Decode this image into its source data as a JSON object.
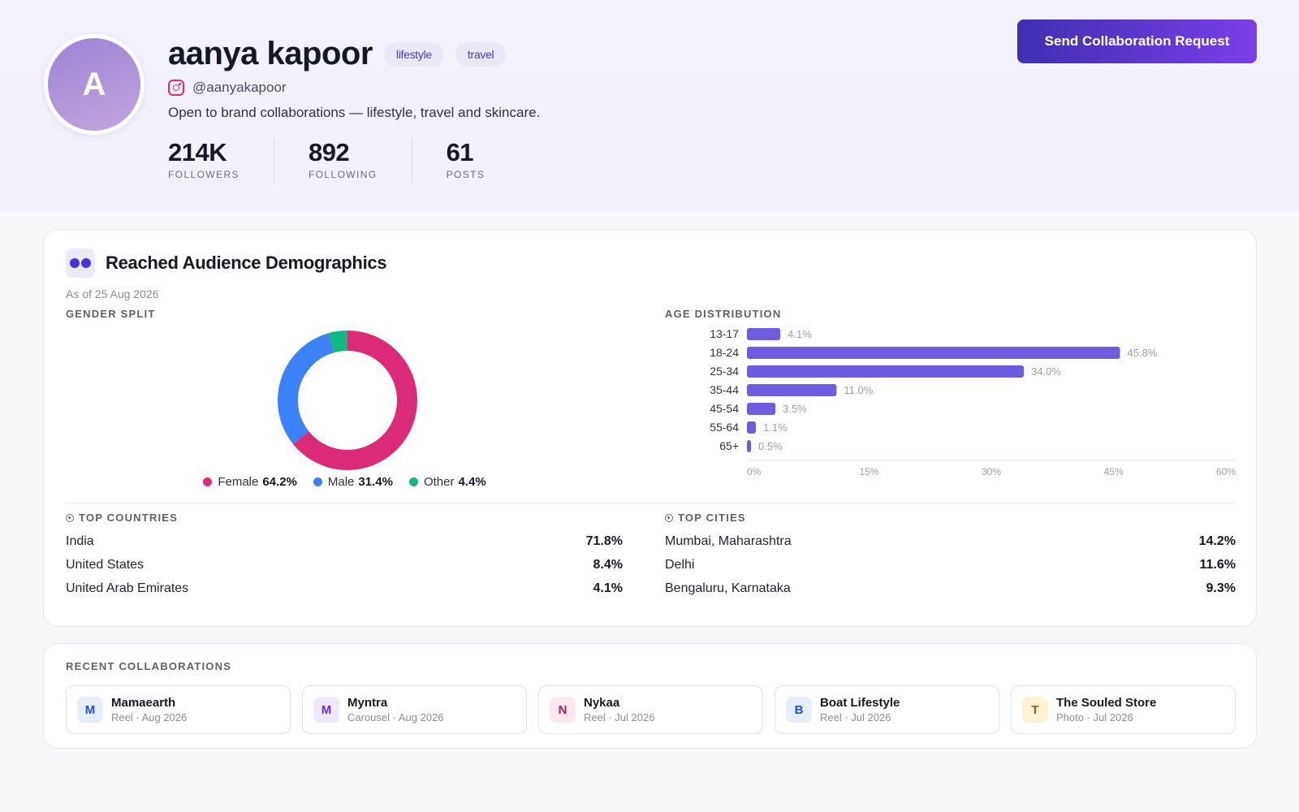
{
  "profile": {
    "avatar_letter": "A",
    "name": "aanya kapoor",
    "tags": [
      "lifestyle",
      "travel"
    ],
    "handle": "@aanyakapoor",
    "bio": "Open to brand collaborations — lifestyle, travel and skincare.",
    "stats": [
      {
        "value": "214K",
        "label": "FOLLOWERS"
      },
      {
        "value": "892",
        "label": "FOLLOWING"
      },
      {
        "value": "61",
        "label": "POSTS"
      }
    ],
    "cta_label": "Send Collaboration Request"
  },
  "demographics": {
    "title": "Reached Audience Demographics",
    "as_of": "As of 25 Aug 2026",
    "gender_label": "GENDER SPLIT",
    "age_label": "AGE DISTRIBUTION",
    "countries_label": "TOP COUNTRIES",
    "cities_label": "TOP CITIES",
    "countries": [
      {
        "name": "India",
        "value": "71.8%"
      },
      {
        "name": "United States",
        "value": "8.4%"
      },
      {
        "name": "United Arab Emirates",
        "value": "4.1%"
      }
    ],
    "cities": [
      {
        "name": "Mumbai, Maharashtra",
        "value": "14.2%"
      },
      {
        "name": "Delhi",
        "value": "11.6%"
      },
      {
        "name": "Bengaluru, Karnataka",
        "value": "9.3%"
      }
    ]
  },
  "chart_data": [
    {
      "type": "pie",
      "title": "GENDER SPLIT",
      "categories": [
        "Female",
        "Male",
        "Other"
      ],
      "values": [
        64.2,
        31.4,
        4.4
      ],
      "labels": [
        "64.2%",
        "31.4%",
        "4.4%"
      ],
      "colors": [
        "#db2a77",
        "#3b82f6",
        "#10b981"
      ],
      "legend": "bottom"
    },
    {
      "type": "bar",
      "orientation": "horizontal",
      "title": "AGE DISTRIBUTION",
      "categories": [
        "13-17",
        "18-24",
        "25-34",
        "35-44",
        "45-54",
        "55-64",
        "65+"
      ],
      "values": [
        4.1,
        45.8,
        34.0,
        11.0,
        3.5,
        1.1,
        0.5
      ],
      "labels": [
        "4.1%",
        "45.8%",
        "34.0%",
        "11.0%",
        "3.5%",
        "1.1%",
        "0.5%"
      ],
      "xlim": [
        0,
        60
      ],
      "ticks": [
        "0%",
        "15%",
        "30%",
        "45%",
        "60%"
      ],
      "color": "#6d5be0",
      "grid": false
    }
  ],
  "collaborations": {
    "title": "RECENT COLLABORATIONS",
    "items": [
      {
        "letter": "M",
        "name": "Mamaearth",
        "meta": "Reel · Aug 2026",
        "color": "#1d4ed8",
        "bg": "#e6eefd"
      },
      {
        "letter": "M",
        "name": "Myntra",
        "meta": "Carousel · Aug 2026",
        "color": "#6d28d9",
        "bg": "#efe8fb"
      },
      {
        "letter": "N",
        "name": "Nykaa",
        "meta": "Reel · Jul 2026",
        "color": "#be185d",
        "bg": "#fce7ef"
      },
      {
        "letter": "B",
        "name": "Boat Lifestyle",
        "meta": "Reel · Jul 2026",
        "color": "#1d4ed8",
        "bg": "#e6eefd"
      },
      {
        "letter": "T",
        "name": "The Souled Store",
        "meta": "Photo · Jul 2026",
        "color": "#b45309",
        "bg": "#fdf2d6"
      }
    ]
  }
}
